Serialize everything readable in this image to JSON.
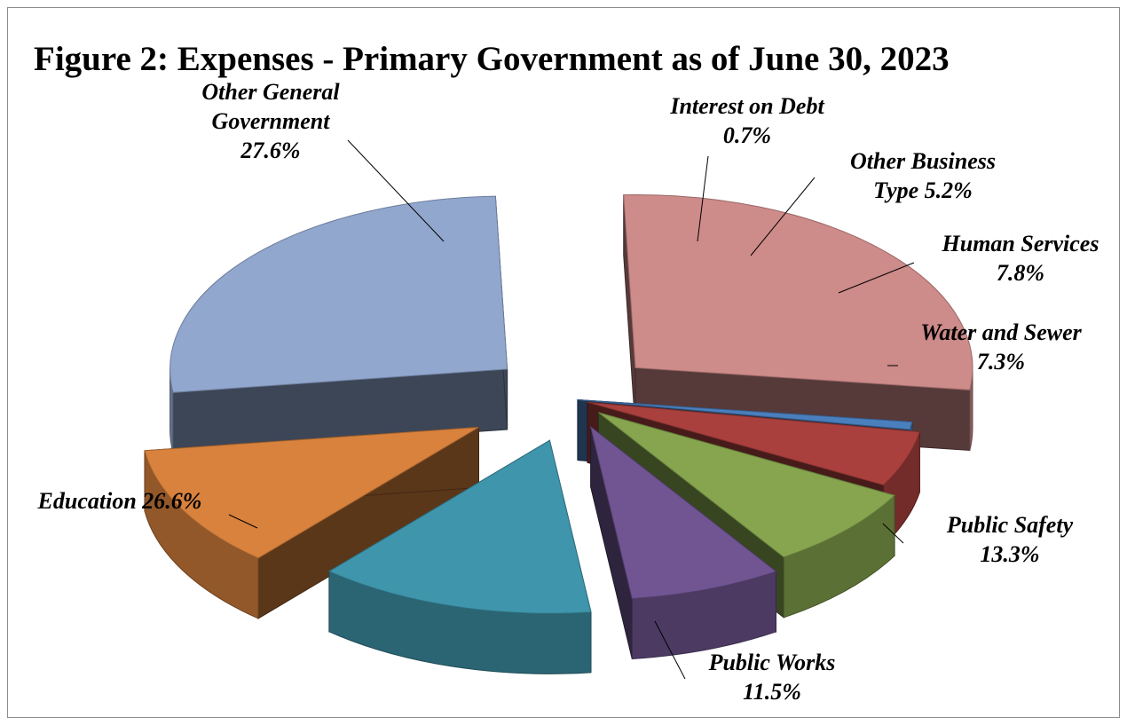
{
  "chart_data": {
    "type": "pie",
    "title": "Figure 2: Expenses - Primary Government as of June 30, 2023",
    "slices": [
      {
        "name": "Other General Government",
        "value": 27.6,
        "value_label": "27.6%",
        "label_lines": [
          "Other General",
          "Government",
          "27.6%"
        ],
        "color": "#cd8b89"
      },
      {
        "name": "Interest on Debt",
        "value": 0.7,
        "value_label": "0.7%",
        "label_lines": [
          "Interest on Debt",
          "0.7%"
        ],
        "color": "#4a7fbd"
      },
      {
        "name": "Other Business Type",
        "value": 5.2,
        "value_label": "5.2%",
        "label_lines": [
          "Other Business",
          "Type  5.2%"
        ],
        "color": "#a9403d"
      },
      {
        "name": "Human Services",
        "value": 7.8,
        "value_label": "7.8%",
        "label_lines": [
          "Human Services",
          "7.8%"
        ],
        "color": "#86a54e"
      },
      {
        "name": "Water and Sewer",
        "value": 7.3,
        "value_label": "7.3%",
        "label_lines": [
          "Water and Sewer",
          "7.3%"
        ],
        "color": "#705592"
      },
      {
        "name": "Public Safety",
        "value": 13.3,
        "value_label": "13.3%",
        "label_lines": [
          "Public Safety",
          "13.3%"
        ],
        "color": "#3f95ab"
      },
      {
        "name": "Public Works",
        "value": 11.5,
        "value_label": "11.5%",
        "label_lines": [
          "Public Works",
          "11.5%"
        ],
        "color": "#d8823d"
      },
      {
        "name": "Education",
        "value": 26.6,
        "value_label": "26.6%",
        "label_lines": [
          "Education  26.6%"
        ],
        "color": "#91a7ce"
      }
    ],
    "style": "3d-exploded-pie"
  }
}
